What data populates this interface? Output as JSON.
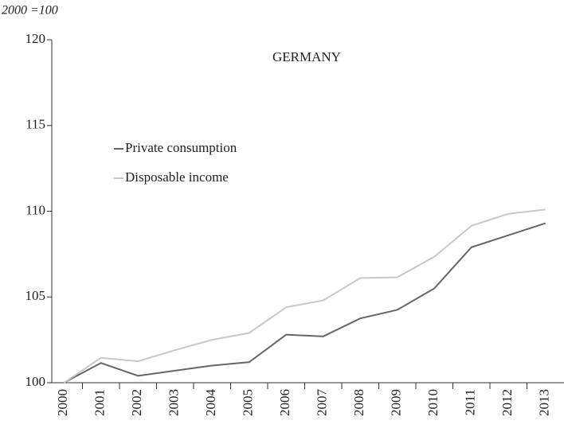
{
  "chart_data": {
    "type": "line",
    "title": "GERMANY",
    "ylabel": "2000 =100",
    "categories": [
      "2000",
      "2001",
      "2002",
      "2003",
      "2004",
      "2005",
      "2006",
      "2007",
      "2008",
      "2009",
      "2010",
      "2011",
      "2012",
      "2013"
    ],
    "series": [
      {
        "name": "Private consumption",
        "color": "#666666",
        "values": [
          100,
          101.15,
          100.4,
          100.7,
          101.0,
          101.2,
          102.8,
          102.7,
          103.75,
          104.25,
          105.5,
          107.9,
          108.6,
          109.3
        ]
      },
      {
        "name": "Disposable income",
        "color": "#c8c8c8",
        "values": [
          100,
          101.45,
          101.25,
          101.9,
          102.5,
          102.9,
          104.4,
          104.8,
          106.1,
          106.15,
          107.35,
          109.15,
          109.85,
          110.1
        ]
      }
    ],
    "ylim": [
      100,
      120
    ],
    "yticks": [
      100,
      105,
      110,
      115,
      120
    ],
    "legend": "upper left"
  }
}
